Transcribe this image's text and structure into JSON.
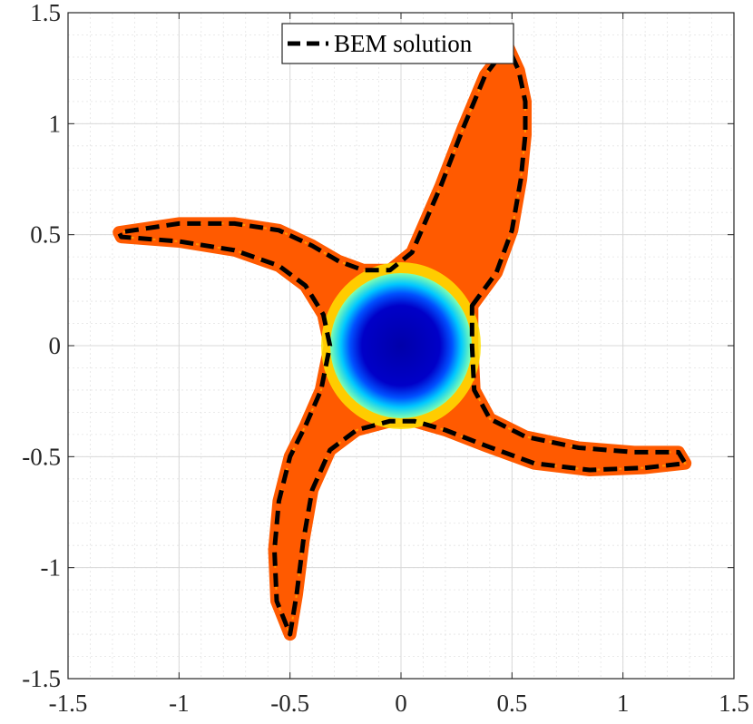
{
  "chart_data": {
    "type": "line",
    "title": "",
    "xlabel": "",
    "ylabel": "",
    "xlim": [
      -1.5,
      1.5
    ],
    "ylim": [
      -1.5,
      1.5
    ],
    "xticks": [
      -1.5,
      -1,
      -0.5,
      0,
      0.5,
      1,
      1.5
    ],
    "yticks": [
      -1.5,
      -1,
      -0.5,
      0,
      0.5,
      1,
      1.5
    ],
    "xtick_labels": [
      "-1.5",
      "-1",
      "-0.5",
      "0",
      "0.5",
      "1",
      "1.5"
    ],
    "ytick_labels": [
      "-1.5",
      "-1",
      "-0.5",
      "0",
      "0.5",
      "1",
      "1.5"
    ],
    "grid": "major and minor",
    "legend_position": "top-center",
    "series": [
      {
        "name": "BEM solution",
        "style": "dashed",
        "color": "#000000",
        "shape": "five-armed star boundary",
        "x": [
          0.32,
          0.43,
          0.5,
          0.54,
          0.56,
          0.56,
          0.53,
          0.48,
          0.38,
          0.28,
          0.18,
          0.05,
          -0.05,
          -0.17,
          -0.28,
          -0.4,
          -0.55,
          -0.75,
          -1.0,
          -1.27,
          -1.26,
          -1.0,
          -0.75,
          -0.55,
          -0.43,
          -0.35,
          -0.32,
          -0.36,
          -0.43,
          -0.5,
          -0.55,
          -0.57,
          -0.56,
          -0.5,
          -0.47,
          -0.44,
          -0.4,
          -0.32,
          -0.2,
          -0.05,
          0.06,
          0.2,
          0.38,
          0.6,
          0.85,
          1.1,
          1.28,
          1.25,
          1.05,
          0.8,
          0.56,
          0.4,
          0.33,
          0.32
        ],
        "y": [
          0.18,
          0.33,
          0.52,
          0.75,
          0.95,
          1.1,
          1.24,
          1.35,
          1.22,
          0.98,
          0.72,
          0.42,
          0.34,
          0.34,
          0.38,
          0.45,
          0.52,
          0.55,
          0.55,
          0.51,
          0.49,
          0.47,
          0.43,
          0.36,
          0.27,
          0.14,
          0.0,
          -0.2,
          -0.36,
          -0.5,
          -0.7,
          -0.92,
          -1.15,
          -1.3,
          -1.12,
          -0.88,
          -0.65,
          -0.47,
          -0.38,
          -0.34,
          -0.34,
          -0.38,
          -0.45,
          -0.53,
          -0.56,
          -0.55,
          -0.53,
          -0.48,
          -0.48,
          -0.46,
          -0.41,
          -0.33,
          -0.2,
          0.0
        ]
      },
      {
        "name": "",
        "style": "filled-contour",
        "colormap": [
          "#ff5a00",
          "#ffe000",
          "#00c8ff",
          "#0000b0"
        ],
        "shape": "five-armed star region",
        "center_value_region": [
          0,
          0
        ]
      }
    ]
  },
  "legend": {
    "label": "BEM solution"
  }
}
